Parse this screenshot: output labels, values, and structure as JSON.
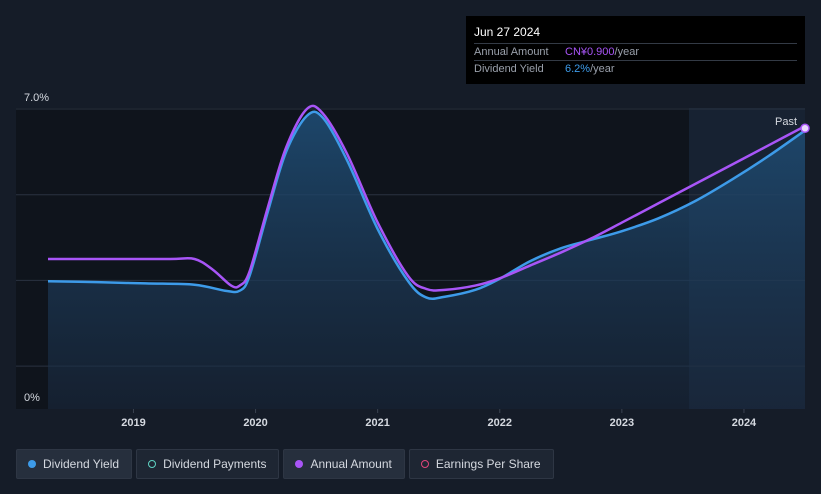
{
  "chart_data": {
    "type": "line",
    "y_unit": "%",
    "ylim": [
      0,
      7.0
    ],
    "y_ticks": [
      {
        "value": 7.0,
        "label": "7.0%"
      },
      {
        "value": 0,
        "label": "0%"
      }
    ],
    "x_ticks": [
      "2019",
      "2020",
      "2021",
      "2022",
      "2023",
      "2024"
    ],
    "xlim": [
      2018.3,
      2024.5
    ],
    "past_label": "Past",
    "past_start": 2023.55,
    "series": [
      {
        "name": "Dividend Yield",
        "color": "#3d9be9",
        "fill": true,
        "points": [
          [
            2018.3,
            2.98
          ],
          [
            2018.7,
            2.96
          ],
          [
            2019.1,
            2.93
          ],
          [
            2019.5,
            2.9
          ],
          [
            2019.75,
            2.76
          ],
          [
            2019.87,
            2.76
          ],
          [
            2019.95,
            3.1
          ],
          [
            2020.1,
            4.6
          ],
          [
            2020.25,
            6.0
          ],
          [
            2020.42,
            6.84
          ],
          [
            2020.55,
            6.8
          ],
          [
            2020.75,
            5.8
          ],
          [
            2021.0,
            4.2
          ],
          [
            2021.25,
            2.98
          ],
          [
            2021.4,
            2.6
          ],
          [
            2021.55,
            2.62
          ],
          [
            2021.8,
            2.78
          ],
          [
            2022.0,
            3.04
          ],
          [
            2022.25,
            3.45
          ],
          [
            2022.5,
            3.75
          ],
          [
            2022.75,
            3.95
          ],
          [
            2023.0,
            4.15
          ],
          [
            2023.3,
            4.45
          ],
          [
            2023.6,
            4.85
          ],
          [
            2023.9,
            5.35
          ],
          [
            2024.2,
            5.9
          ],
          [
            2024.5,
            6.5
          ]
        ]
      },
      {
        "name": "Annual Amount",
        "color": "#a855f7",
        "fill": false,
        "points": [
          [
            2018.3,
            3.5
          ],
          [
            2018.8,
            3.5
          ],
          [
            2019.3,
            3.5
          ],
          [
            2019.5,
            3.5
          ],
          [
            2019.65,
            3.25
          ],
          [
            2019.8,
            2.88
          ],
          [
            2019.87,
            2.88
          ],
          [
            2019.95,
            3.2
          ],
          [
            2020.1,
            4.7
          ],
          [
            2020.25,
            6.1
          ],
          [
            2020.42,
            7.0
          ],
          [
            2020.55,
            6.9
          ],
          [
            2020.75,
            5.95
          ],
          [
            2021.0,
            4.35
          ],
          [
            2021.25,
            3.1
          ],
          [
            2021.4,
            2.8
          ],
          [
            2021.55,
            2.78
          ],
          [
            2021.8,
            2.88
          ],
          [
            2022.0,
            3.05
          ],
          [
            2022.25,
            3.35
          ],
          [
            2022.5,
            3.65
          ],
          [
            2022.75,
            3.98
          ],
          [
            2023.0,
            4.35
          ],
          [
            2023.3,
            4.8
          ],
          [
            2023.6,
            5.25
          ],
          [
            2023.9,
            5.7
          ],
          [
            2024.2,
            6.15
          ],
          [
            2024.5,
            6.6
          ]
        ]
      }
    ],
    "end_marker": {
      "x": 2024.5,
      "y": 6.55,
      "series": "Annual Amount"
    }
  },
  "tooltip": {
    "date": "Jun 27 2024",
    "rows": [
      {
        "label": "Annual Amount",
        "value": "CN¥0.900",
        "unit": "/year"
      },
      {
        "label": "Dividend Yield",
        "value": "6.2%",
        "unit": "/year"
      }
    ]
  },
  "legend": [
    {
      "label": "Dividend Yield",
      "color": "#3d9be9",
      "style": "filled",
      "active": true
    },
    {
      "label": "Dividend Payments",
      "color": "#5fd3c3",
      "style": "hollow",
      "active": false
    },
    {
      "label": "Annual Amount",
      "color": "#a855f7",
      "style": "filled",
      "active": true
    },
    {
      "label": "Earnings Per Share",
      "color": "#e0457b",
      "style": "hollow",
      "active": false
    }
  ]
}
